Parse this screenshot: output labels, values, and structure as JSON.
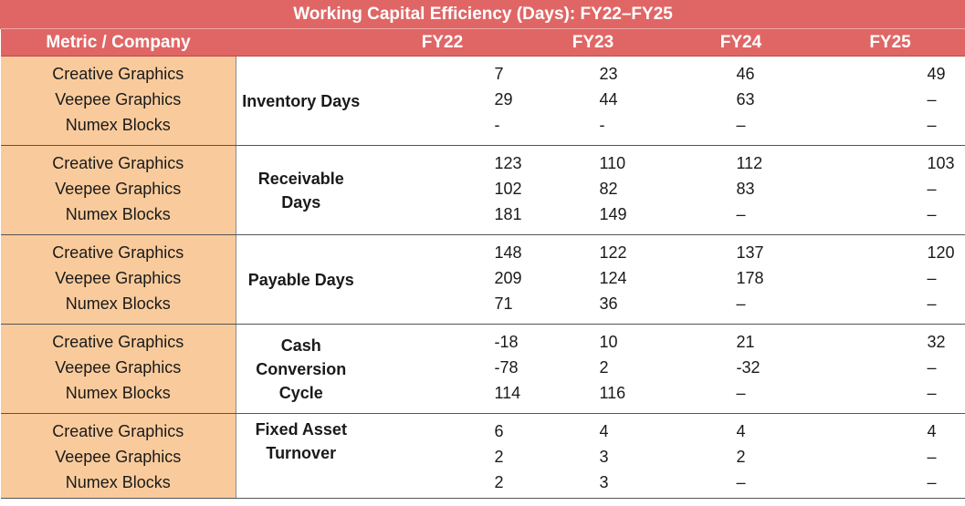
{
  "title": "Working Capital Efficiency (Days): FY22–FY25",
  "header": {
    "metric_company": "Metric / Company",
    "years": [
      "FY22",
      "FY23",
      "FY24",
      "FY25"
    ]
  },
  "companies": [
    "Creative Graphics",
    "Veepee Graphics",
    "Numex Blocks"
  ],
  "groups": [
    {
      "metric": "Inventory Days",
      "rows": [
        [
          "7",
          "23",
          "46",
          "49"
        ],
        [
          "29",
          "44",
          "63",
          "–"
        ],
        [
          "-",
          "-",
          "–",
          "–"
        ]
      ]
    },
    {
      "metric": "Receivable Days",
      "rows": [
        [
          "123",
          "110",
          "112",
          "103"
        ],
        [
          "102",
          "82",
          "83",
          "–"
        ],
        [
          "181",
          "149",
          "–",
          "–"
        ]
      ]
    },
    {
      "metric": "Payable Days",
      "rows": [
        [
          "148",
          "122",
          "137",
          "120"
        ],
        [
          "209",
          "124",
          "178",
          "–"
        ],
        [
          "71",
          "36",
          "–",
          "–"
        ]
      ]
    },
    {
      "metric": "Cash Conversion Cycle",
      "rows": [
        [
          "-18",
          "10",
          "21",
          "32"
        ],
        [
          "-78",
          "2",
          "-32",
          "–"
        ],
        [
          "114",
          "116",
          "–",
          "–"
        ]
      ]
    },
    {
      "metric": "Fixed Asset Turnover",
      "rows": [
        [
          "6",
          "4",
          "4",
          "4"
        ],
        [
          "2",
          "3",
          "2",
          "–"
        ],
        [
          "2",
          "3",
          "–",
          "–"
        ]
      ]
    }
  ],
  "colors": {
    "header_bg": "#e06666",
    "company_bg": "#f9cb9c"
  }
}
